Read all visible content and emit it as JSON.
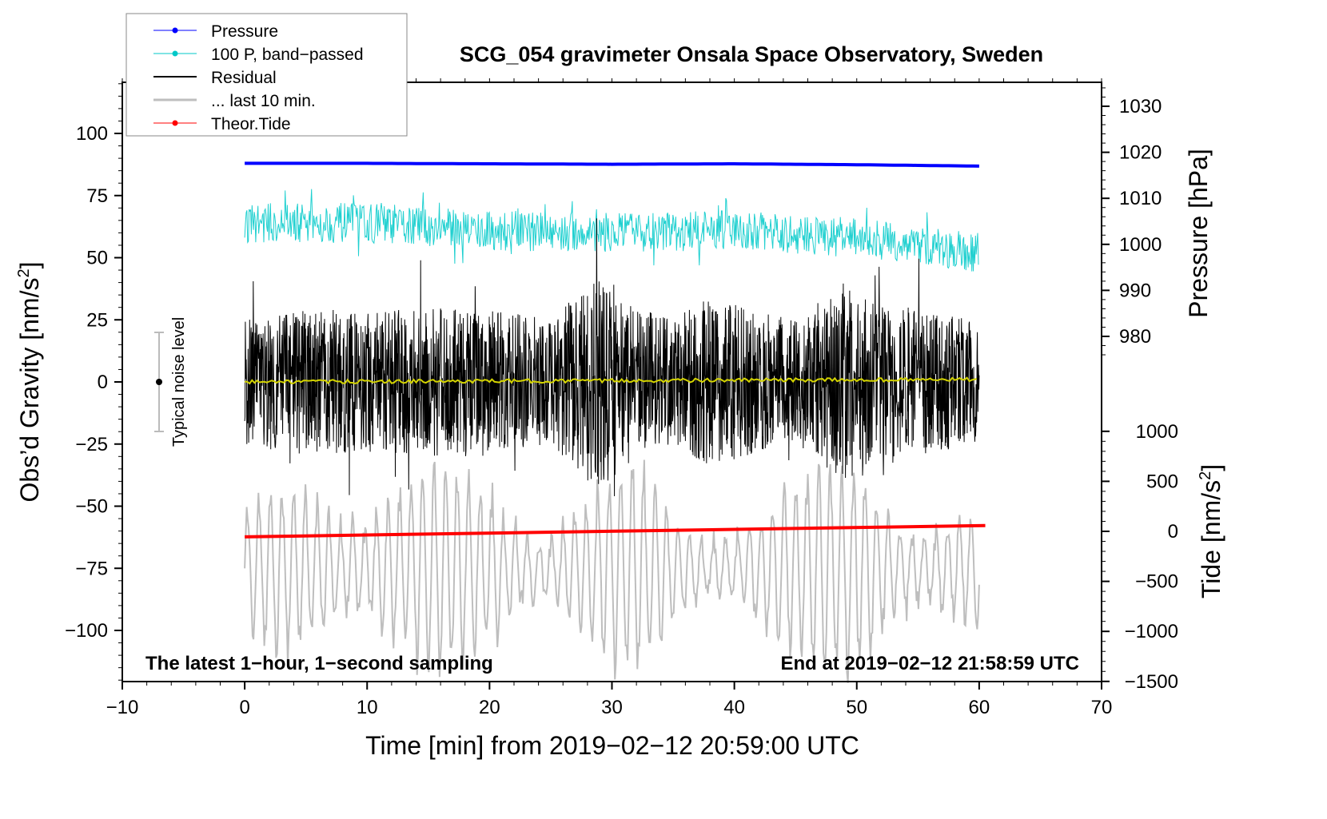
{
  "chart_data": {
    "type": "line",
    "title": "SCG_054 gravimeter Onsala Space Observatory, Sweden",
    "xlabel": "Time [min] from 2019−02−12 20:59:00 UTC",
    "ylabel_left": "Obs’d Gravity [nm/s",
    "ylabel_left_sup": "2",
    "ylabel_left_end": "]",
    "ylabel_right_top": "Pressure [hPa]",
    "ylabel_right_bottom": "Tide [nm/s",
    "ylabel_right_bottom_sup": "2",
    "ylabel_right_bottom_end": "]",
    "xlim": [
      -10,
      70
    ],
    "ylim_left": [
      -120,
      120
    ],
    "x_ticks": [
      "−10",
      "0",
      "10",
      "20",
      "30",
      "40",
      "50",
      "60",
      "70"
    ],
    "x_tick_values": [
      -10,
      0,
      10,
      20,
      30,
      40,
      50,
      60,
      70
    ],
    "y_left_ticks": [
      "100",
      "75",
      "50",
      "25",
      "0",
      "−25",
      "−50",
      "−75",
      "−100"
    ],
    "y_left_tick_values": [
      100,
      75,
      50,
      25,
      0,
      -25,
      -50,
      -75,
      -100
    ],
    "pressure_ticks": [
      "1030",
      "1020",
      "1010",
      "1000",
      "990",
      "980"
    ],
    "pressure_tick_values": [
      1030,
      1020,
      1010,
      1000,
      990,
      980
    ],
    "tide_ticks": [
      "1000",
      "500",
      "0",
      "−500",
      "−1000",
      "−1500"
    ],
    "tide_tick_values": [
      1000,
      500,
      0,
      -500,
      -1000,
      -1500
    ],
    "legend": [
      {
        "label": "Pressure",
        "color": "#0000ff",
        "marker": true,
        "width": 1
      },
      {
        "label": "100 P, band−passed",
        "color": "#00c8c8",
        "marker": true,
        "width": 1
      },
      {
        "label": "Residual",
        "color": "#000000",
        "marker": false,
        "width": 2
      },
      {
        "label": "... last 10 min.",
        "color": "#bebebe",
        "marker": false,
        "width": 3
      },
      {
        "label": "Theor.Tide",
        "color": "#ff0000",
        "marker": true,
        "width": 1
      }
    ],
    "legend_position": "top-left",
    "annotation_left": "The latest 1−hour, 1−second sampling",
    "annotation_right": "End at 2019−02−12 21:58:59 UTC",
    "noise_label": "Typical noise level",
    "noise_level_range": [
      -20,
      20
    ],
    "series": {
      "pressure_hPa": {
        "x": [
          0,
          10,
          20,
          30,
          40,
          50,
          60
        ],
        "y": [
          1017.6,
          1017.6,
          1017.5,
          1017.4,
          1017.5,
          1017.3,
          1017.0
        ]
      },
      "band_passed_center": {
        "x": [
          0,
          10,
          20,
          30,
          40,
          50,
          60
        ],
        "y": [
          64,
          64,
          61,
          60,
          61,
          58,
          52
        ],
        "amplitude": 8
      },
      "residual_envelope": {
        "x": [
          0,
          5,
          10,
          15,
          20,
          25,
          29,
          32,
          35,
          38,
          42,
          45,
          49,
          52,
          55,
          60
        ],
        "y": [
          25,
          30,
          28,
          30,
          30,
          25,
          45,
          30,
          25,
          35,
          28,
          25,
          40,
          30,
          30,
          25
        ]
      },
      "smoothed_residual": {
        "x": [
          0,
          60
        ],
        "y": [
          0,
          1
        ]
      },
      "last_10_min": {
        "center": -75,
        "amplitude_envelope": {
          "x": [
            0,
            5,
            10,
            15,
            20,
            25,
            29,
            32,
            35,
            40,
            45,
            50,
            55,
            60
          ],
          "y": [
            18,
            40,
            25,
            35,
            35,
            20,
            30,
            40,
            20,
            22,
            30,
            40,
            25,
            20
          ]
        }
      },
      "theor_tide": {
        "x": [
          0,
          60.5
        ],
        "y": [
          -55,
          58
        ]
      }
    }
  }
}
